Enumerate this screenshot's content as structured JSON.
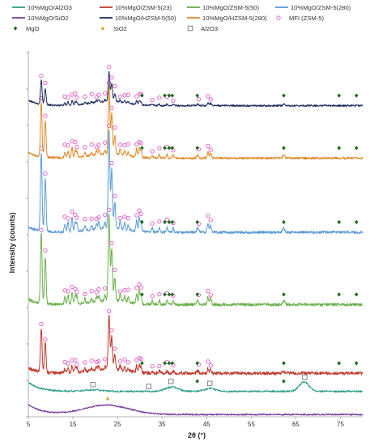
{
  "chart_data": {
    "type": "line",
    "title": "",
    "xlabel": "2θ (°)",
    "ylabel": "Intensity (counts)",
    "xlim": [
      5,
      80
    ],
    "xticks": [
      5,
      15,
      25,
      35,
      45,
      55,
      65,
      75
    ],
    "tick_labels": [
      "5",
      "15",
      "25",
      "35",
      "45",
      "55",
      "65",
      "75"
    ],
    "grid": false,
    "legend_position": "top",
    "legend": [
      {
        "label": "10%MgO/Al2O3",
        "kind": "line",
        "color": "#2e9e8a"
      },
      {
        "label": "10%MgO/ZSM-5(23)",
        "kind": "line",
        "color": "#c0392b"
      },
      {
        "label": "10%MgO/ZSM-5(50)",
        "kind": "line",
        "color": "#6ab04c"
      },
      {
        "label": "10%MgO/ZSM-5(280)",
        "kind": "line",
        "color": "#5b9bd5"
      },
      {
        "label": "10%MgO/SiO2",
        "kind": "line",
        "color": "#7b3fa0"
      },
      {
        "label": "10%MgO/HZSM-5(50)",
        "kind": "line",
        "color": "#1f2d5c"
      },
      {
        "label": "10%MgO/HZSM-5(280)",
        "kind": "line",
        "color": "#e08a2a"
      },
      {
        "label": "MFI (ZSM-5)",
        "kind": "circle",
        "color": "#e05cc8"
      },
      {
        "label": "MgO",
        "kind": "diamond",
        "color": "#1e6b1e"
      },
      {
        "label": "SiO2",
        "kind": "triangle",
        "color": "#e09a2a"
      },
      {
        "label": "Al2O3",
        "kind": "square",
        "color": "#777777"
      }
    ],
    "reflections": {
      "MFI": [
        7.9,
        8.8,
        13.2,
        13.9,
        14.8,
        15.5,
        15.9,
        17.7,
        19.2,
        20.3,
        20.8,
        22.2,
        23.1,
        23.7,
        24.4,
        25.6,
        26.6,
        27.4,
        29.3,
        29.9,
        30.3,
        32.8,
        34.4,
        36.1,
        37.5,
        43.2,
        45.3,
        45.9
      ],
      "MgO": [
        30.5,
        35.6,
        36.6,
        37.3,
        42.9,
        62.3,
        74.7,
        78.6
      ],
      "SiO2": [
        22.8
      ],
      "Al2O3": [
        19.5,
        32.0,
        37.0,
        45.7,
        67.0
      ]
    },
    "series": [
      {
        "key": "sio2",
        "label": "10%MgO/SiO2",
        "color": "#7b3fa0",
        "base": 0.6,
        "amp": 1.0,
        "noise": 0.2,
        "background": "amorphous",
        "offset_markers": [],
        "mfi": false
      },
      {
        "key": "al2o3",
        "label": "10%MgO/Al2O3",
        "color": "#2e9e8a",
        "base": 7.0,
        "amp": 1.0,
        "noise": 0.25,
        "background": "alumina",
        "offset_markers": [
          "Al2O3",
          "MgO"
        ],
        "mfi": false
      },
      {
        "key": "z23",
        "label": "10%MgO/ZSM-5(23)",
        "color": "#c0392b",
        "base": 12.0,
        "amp": 1.0,
        "noise": 0.45,
        "background": "zeolite",
        "offset_markers": [
          "MgO"
        ],
        "mfi": true
      },
      {
        "key": "z50",
        "label": "10%MgO/ZSM-5(50)",
        "color": "#6ab04c",
        "base": 31.0,
        "amp": 1.6,
        "noise": 0.4,
        "background": "zeolite",
        "offset_markers": [
          "MgO"
        ],
        "mfi": true
      },
      {
        "key": "z280",
        "label": "10%MgO/ZSM-5(280)",
        "color": "#5b9bd5",
        "base": 51.0,
        "amp": 1.8,
        "noise": 0.35,
        "background": "zeolite",
        "offset_markers": [
          "MgO"
        ],
        "mfi": true
      },
      {
        "key": "h280",
        "label": "10%MgO/HZSM-5(280)",
        "color": "#e08a2a",
        "base": 71.5,
        "amp": 1.25,
        "noise": 0.3,
        "background": "zeolite",
        "offset_markers": [
          "MgO"
        ],
        "mfi": true
      },
      {
        "key": "h50",
        "label": "10%MgO/HZSM-5(50)",
        "color": "#1f2d5c",
        "base": 86.0,
        "amp": 0.55,
        "noise": 0.25,
        "background": "zeolite",
        "offset_markers": [
          "MgO"
        ],
        "mfi": true
      }
    ],
    "peaks": [
      [
        7.9,
        12,
        0.18
      ],
      [
        8.8,
        8,
        0.18
      ],
      [
        13.2,
        1.2,
        0.15
      ],
      [
        13.9,
        1.6,
        0.15
      ],
      [
        14.8,
        2.2,
        0.15
      ],
      [
        15.5,
        1.5,
        0.15
      ],
      [
        15.9,
        1.3,
        0.15
      ],
      [
        17.7,
        0.7,
        0.15
      ],
      [
        19.2,
        0.6,
        0.15
      ],
      [
        20.3,
        0.9,
        0.15
      ],
      [
        20.8,
        1.0,
        0.15
      ],
      [
        22.2,
        0.8,
        0.15
      ],
      [
        23.1,
        15,
        0.18
      ],
      [
        23.7,
        9,
        0.18
      ],
      [
        24.4,
        4,
        0.18
      ],
      [
        25.6,
        1.2,
        0.15
      ],
      [
        26.6,
        1.0,
        0.15
      ],
      [
        27.4,
        0.8,
        0.15
      ],
      [
        29.3,
        1.8,
        0.15
      ],
      [
        29.9,
        2.2,
        0.15
      ],
      [
        30.3,
        1.5,
        0.15
      ],
      [
        32.8,
        0.6,
        0.15
      ],
      [
        34.4,
        0.7,
        0.15
      ],
      [
        36.1,
        0.8,
        0.15
      ],
      [
        37.5,
        0.7,
        0.15
      ],
      [
        43.0,
        0.8,
        0.2
      ],
      [
        45.3,
        1.3,
        0.18
      ],
      [
        45.9,
        1.1,
        0.18
      ],
      [
        62.3,
        0.6,
        0.25
      ]
    ]
  }
}
